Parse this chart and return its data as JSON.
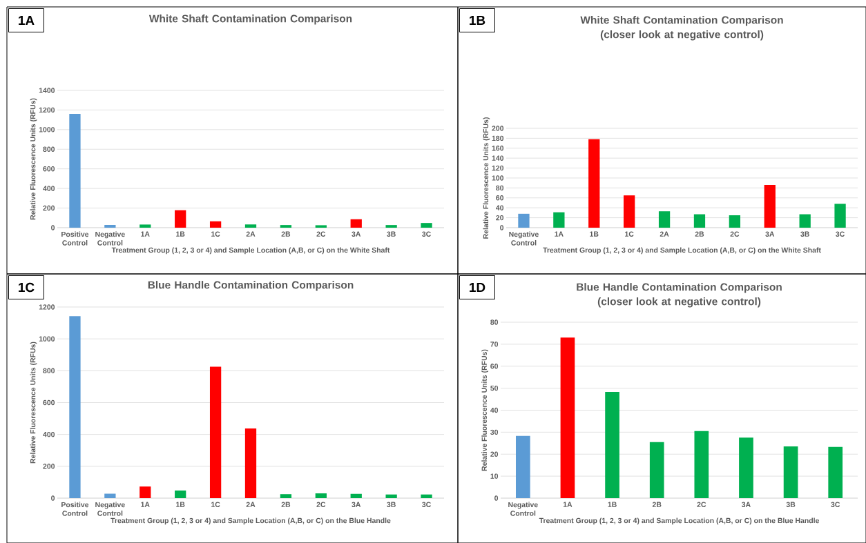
{
  "chart_data": [
    {
      "type": "bar",
      "title": "White Shaft Contamination Comparison",
      "xlabel": "Treatment Group (1, 2, 3 or 4) and Sample Location (A,B, or C) on the White Shaft",
      "ylabel": "Relative Fluorescence Units (RFUs)",
      "annotations": [
        "1A"
      ],
      "categories": [
        "Positive Control",
        "Negative Control",
        "1A",
        "1B",
        "1C",
        "2A",
        "2B",
        "2C",
        "3A",
        "3B",
        "3C"
      ],
      "values": [
        1160,
        28,
        32,
        178,
        65,
        33,
        27,
        25,
        86,
        27,
        48
      ],
      "colors": [
        "#5b9bd5",
        "#5b9bd5",
        "#00b050",
        "#ff0000",
        "#ff0000",
        "#00b050",
        "#00b050",
        "#00b050",
        "#ff0000",
        "#00b050",
        "#00b050"
      ],
      "ylim": [
        0,
        1400
      ],
      "yticks": [
        0,
        200,
        400,
        600,
        800,
        1000,
        1200,
        1400
      ],
      "grid": "y"
    },
    {
      "type": "bar",
      "title": "White Shaft Contamination Comparison (closer look at negative control)",
      "xlabel": "Treatment Group (1, 2, 3 or 4) and Sample Location (A,B, or C) on the White Shaft",
      "ylabel": "Relative Fluorescence Units (RFUs)",
      "annotations": [
        "1B"
      ],
      "categories": [
        "Negative Control",
        "1A",
        "1B",
        "1C",
        "2A",
        "2B",
        "2C",
        "3A",
        "3B",
        "3C"
      ],
      "values": [
        28,
        31,
        178,
        65,
        33,
        27,
        25,
        86,
        27,
        48
      ],
      "colors": [
        "#5b9bd5",
        "#00b050",
        "#ff0000",
        "#ff0000",
        "#00b050",
        "#00b050",
        "#00b050",
        "#ff0000",
        "#00b050",
        "#00b050"
      ],
      "ylim": [
        0,
        200
      ],
      "yticks": [
        0,
        20,
        40,
        60,
        80,
        100,
        120,
        140,
        160,
        180,
        200
      ],
      "grid": "y"
    },
    {
      "type": "bar",
      "title": "Blue Handle Contamination Comparison",
      "xlabel": "Treatment Group (1, 2, 3 or 4) and Sample Location (A,B, or C) on the Blue Handle",
      "ylabel": "Relative Fluorescence Units (RFUs)",
      "annotations": [
        "1C"
      ],
      "categories": [
        "Positive Control",
        "Negative Control",
        "1A",
        "1B",
        "1C",
        "2A",
        "2B",
        "2C",
        "3A",
        "3B",
        "3C"
      ],
      "values": [
        1143,
        28,
        73,
        48,
        825,
        437,
        25,
        30,
        27,
        23,
        23
      ],
      "colors": [
        "#5b9bd5",
        "#5b9bd5",
        "#ff0000",
        "#00b050",
        "#ff0000",
        "#ff0000",
        "#00b050",
        "#00b050",
        "#00b050",
        "#00b050",
        "#00b050"
      ],
      "ylim": [
        0,
        1200
      ],
      "yticks": [
        0,
        200,
        400,
        600,
        800,
        1000,
        1200
      ],
      "grid": "y"
    },
    {
      "type": "bar",
      "title": "Blue Handle Contamination Comparison (closer look at negative control)",
      "xlabel": "Treatment Group (1, 2, 3 or 4) and Sample Location (A,B, or C) on the Blue Handle",
      "ylabel": "Relative Fluorescence Units (RFUs)",
      "annotations": [
        "1D"
      ],
      "categories": [
        "Negative Control",
        "1A",
        "1B",
        "2B",
        "2C",
        "3A",
        "3B",
        "3C"
      ],
      "values": [
        28.3,
        73,
        48.3,
        25.5,
        30.5,
        27.5,
        23.5,
        23.3
      ],
      "colors": [
        "#5b9bd5",
        "#ff0000",
        "#00b050",
        "#00b050",
        "#00b050",
        "#00b050",
        "#00b050",
        "#00b050"
      ],
      "ylim": [
        0,
        80
      ],
      "yticks": [
        0,
        10,
        20,
        30,
        40,
        50,
        60,
        70,
        80
      ],
      "grid": "y"
    }
  ]
}
